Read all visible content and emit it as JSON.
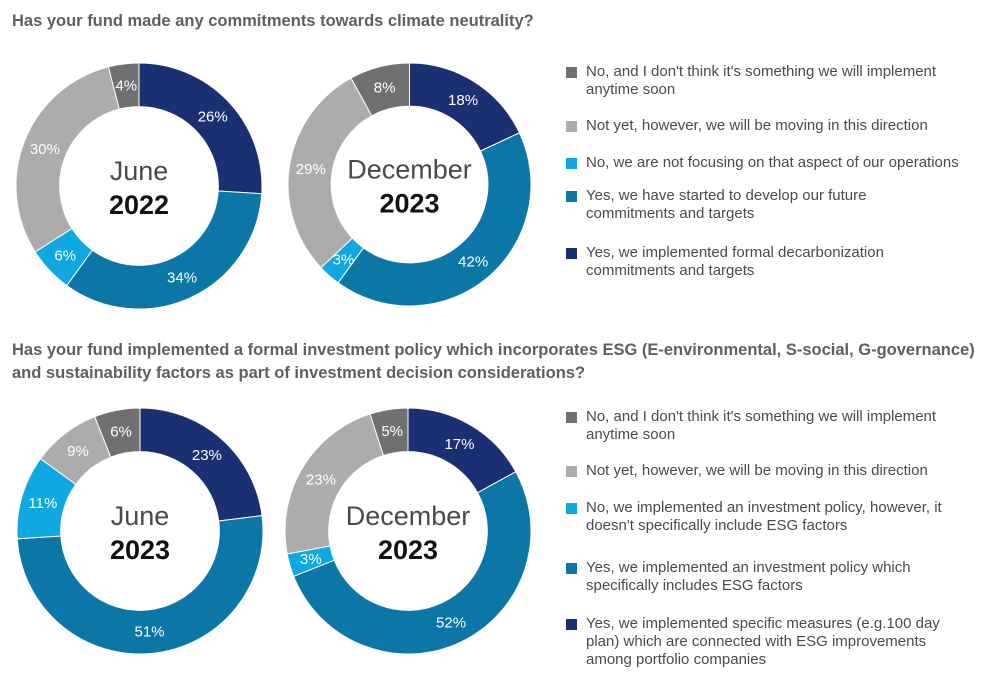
{
  "colors": {
    "dark_gray": "#707070",
    "light_gray": "#acacac",
    "light_blue": "#10a8e0",
    "medium_blue": "#0c76a7",
    "dark_navy": "#1b2f73"
  },
  "questions": [
    "Has your fund made any commitments towards climate neutrality?",
    "Has your fund implemented a formal investment policy which incorporates ESG (E-environmental, S-social, G-governance) and sustainability factors as part of investment decision considerations?"
  ],
  "legends": [
    [
      {
        "label": "No, and I don't think it's something we will implement anytime soon",
        "color": "#707070"
      },
      {
        "label": "Not yet, however, we will be moving in this direction",
        "color": "#acacac"
      },
      {
        "label": "No, we are not focusing on that aspect of our operations",
        "color": "#10a8e0"
      },
      {
        "label": "Yes, we have started to develop our future commitments and targets",
        "color": "#0c76a7"
      },
      {
        "label": "Yes, we implemented formal decarbonization commitments and targets",
        "color": "#1b2f73"
      }
    ],
    [
      {
        "label": "No, and I don't think it's something we will implement anytime soon",
        "color": "#707070"
      },
      {
        "label": "Not yet, however, we will be moving in this direction",
        "color": "#acacac"
      },
      {
        "label": "No, we implemented an investment policy, however, it doesn't specifically include ESG factors",
        "color": "#10a8e0"
      },
      {
        "label": "Yes, we implemented an investment policy which specifically includes ESG factors",
        "color": "#0c76a7"
      },
      {
        "label": "Yes, we implemented specific measures (e.g.100 day plan) which are connected with ESG improvements among portfolio companies",
        "color": "#1b2f73"
      }
    ]
  ],
  "chart_data": [
    {
      "type": "pie",
      "title": "June 2022",
      "center_month": "June",
      "center_year": "2022",
      "categories": [
        "Yes, we implemented formal decarbonization commitments and targets",
        "Yes, we have started to develop our future commitments and targets",
        "No, we are not focusing on that aspect of our operations",
        "Not yet, however, we will be moving in this direction",
        "No, and I don't think it's something we will implement anytime soon"
      ],
      "values": [
        26,
        34,
        6,
        30,
        4
      ],
      "labels": [
        "26%",
        "34%",
        "6%",
        "30%",
        "4%"
      ],
      "colors": [
        "#1b2f73",
        "#0c76a7",
        "#10a8e0",
        "#acacac",
        "#707070"
      ]
    },
    {
      "type": "pie",
      "title": "December 2023",
      "center_month": "December",
      "center_year": "2023",
      "categories": [
        "Yes, we implemented formal decarbonization commitments and targets",
        "Yes, we have started to develop our future commitments and targets",
        "No, we are not focusing on that aspect of our operations",
        "Not yet, however, we will be moving in this direction",
        "No, and I don't think it's something we will implement anytime soon"
      ],
      "values": [
        18,
        42,
        3,
        29,
        8
      ],
      "labels": [
        "18%",
        "42%",
        "3%",
        "29%",
        "8%"
      ],
      "colors": [
        "#1b2f73",
        "#0c76a7",
        "#10a8e0",
        "#acacac",
        "#707070"
      ]
    },
    {
      "type": "pie",
      "title": "June 2023",
      "center_month": "June",
      "center_year": "2023",
      "categories": [
        "Yes, we implemented specific measures (e.g.100 day plan) which are connected with ESG improvements among portfolio companies",
        "Yes, we implemented an investment policy which specifically includes ESG factors",
        "No, we implemented an investment policy, however, it doesn't specifically include ESG factors",
        "Not yet, however, we will be moving in this direction",
        "No, and I don't think it's something we will implement anytime soon"
      ],
      "values": [
        23,
        51,
        11,
        9,
        6
      ],
      "labels": [
        "23%",
        "51%",
        "11%",
        "9%",
        "6%"
      ],
      "colors": [
        "#1b2f73",
        "#0c76a7",
        "#10a8e0",
        "#acacac",
        "#707070"
      ]
    },
    {
      "type": "pie",
      "title": "December 2023",
      "center_month": "December",
      "center_year": "2023",
      "categories": [
        "Yes, we implemented specific measures (e.g.100 day plan) which are connected with ESG improvements among portfolio companies",
        "Yes, we implemented an investment policy which specifically includes ESG factors",
        "No, we implemented an investment policy, however, it doesn't specifically include ESG factors",
        "Not yet, however, we will be moving in this direction",
        "No, and I don't think it's something we will implement anytime soon"
      ],
      "values": [
        17,
        52,
        3,
        23,
        5
      ],
      "labels": [
        "17%",
        "52%",
        "3%",
        "23%",
        "5%"
      ],
      "colors": [
        "#1b2f73",
        "#0c76a7",
        "#10a8e0",
        "#acacac",
        "#707070"
      ]
    }
  ]
}
